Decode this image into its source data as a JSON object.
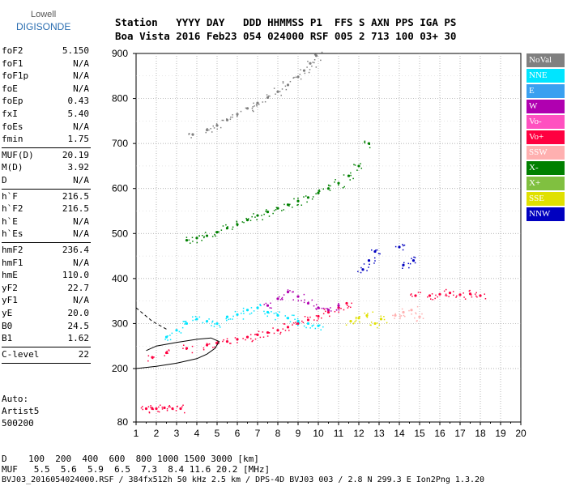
{
  "logo": {
    "line1": "Lowell",
    "line2": "DIGISONDE"
  },
  "header": {
    "row1": "Station   YYYY DAY   DDD HHMMSS P1  FFS S AXN PPS IGA PS",
    "row2": "Boa Vista 2016 Feb23 054 024000 RSF 005 2 713 100 03+ 30"
  },
  "params": [
    {
      "k": "foF2",
      "v": "5.150"
    },
    {
      "k": "foF1",
      "v": "N/A"
    },
    {
      "k": "foF1p",
      "v": "N/A"
    },
    {
      "k": "foE",
      "v": "N/A"
    },
    {
      "k": "foEp",
      "v": "0.43"
    },
    {
      "k": "fxI",
      "v": "5.40"
    },
    {
      "k": "foEs",
      "v": "N/A"
    },
    {
      "k": "fmin",
      "v": "1.75"
    },
    {
      "k": "MUF(D)",
      "v": "20.19"
    },
    {
      "k": "M(D)",
      "v": "3.92"
    },
    {
      "k": "D",
      "v": "N/A"
    },
    {
      "k": "h`F",
      "v": "216.5"
    },
    {
      "k": "h`F2",
      "v": "216.5"
    },
    {
      "k": "h`E",
      "v": "N/A"
    },
    {
      "k": "h`Es",
      "v": "N/A"
    },
    {
      "k": "hmF2",
      "v": "236.4"
    },
    {
      "k": "hmF1",
      "v": "N/A"
    },
    {
      "k": "hmE",
      "v": "110.0"
    },
    {
      "k": "yF2",
      "v": "22.7"
    },
    {
      "k": "yF1",
      "v": "N/A"
    },
    {
      "k": "yE",
      "v": "20.0"
    },
    {
      "k": "B0",
      "v": "24.5"
    },
    {
      "k": "B1",
      "v": "1.62"
    },
    {
      "k": "C-level",
      "v": "22"
    }
  ],
  "auto": {
    "line1": "Auto:",
    "line2": "Artist5",
    "line3": "500200"
  },
  "legend": [
    {
      "label": "NoVal",
      "color": "#808080"
    },
    {
      "label": "NNE",
      "color": "#00e5ff"
    },
    {
      "label": "E",
      "color": "#3aa0f0"
    },
    {
      "label": "W",
      "color": "#b000b0"
    },
    {
      "label": "Vo-",
      "color": "#ff50c0"
    },
    {
      "label": "Vo+",
      "color": "#ff0040"
    },
    {
      "label": "SSW",
      "color": "#ffb0b0"
    },
    {
      "label": "X-",
      "color": "#008000"
    },
    {
      "label": "X+",
      "color": "#80c040"
    },
    {
      "label": "SSE",
      "color": "#e0e000"
    },
    {
      "label": "NNW",
      "color": "#0000c0"
    }
  ],
  "footer": {
    "d_row": "D    100  200  400  600  800 1000 1500 3000 [km]",
    "muf_row": "MUF   5.5  5.6  5.9  6.5  7.3  8.4 11.6 20.2 [MHz]",
    "file_row": "BVJ03_2016054024000.RSF / 384fx512h 50 kHz 2.5 km / DPS-4D BVJ03 003 / 2.8 N 299.3 E Ion2Png 1.3.20"
  },
  "chart_data": {
    "type": "scatter",
    "xlim": [
      1,
      20
    ],
    "ylim": [
      80,
      900
    ],
    "x_ticks": [
      1,
      2,
      3,
      4,
      5,
      6,
      7,
      8,
      9,
      10,
      11,
      12,
      13,
      14,
      15,
      16,
      17,
      18,
      19,
      20
    ],
    "y_ticks": [
      80,
      200,
      300,
      400,
      500,
      600,
      700,
      800,
      900
    ],
    "grid": true,
    "traces": [
      {
        "name": "O-trace 1st hop",
        "color": "#ff0040",
        "x": [
          1.8,
          2.5,
          3.5,
          4.5,
          5.0,
          5.5,
          6.0,
          6.5,
          7.0,
          7.5,
          8.0,
          8.5,
          9.0,
          9.5,
          10.0,
          10.5,
          11.0,
          11.4
        ],
        "y": [
          225,
          235,
          245,
          252,
          256,
          260,
          265,
          270,
          275,
          280,
          285,
          292,
          300,
          308,
          316,
          325,
          335,
          345
        ]
      },
      {
        "name": "O-trace 2nd hop",
        "color": "#008000",
        "x": [
          3.5,
          4.0,
          4.5,
          5.0,
          5.5,
          6.0,
          6.5,
          7.0,
          7.5,
          8.0,
          8.5,
          9.0,
          9.5,
          10.0,
          10.5,
          11.0,
          11.5,
          12.0,
          12.5
        ],
        "y": [
          485,
          490,
          495,
          503,
          512,
          520,
          530,
          540,
          548,
          556,
          564,
          572,
          580,
          590,
          600,
          612,
          628,
          650,
          700
        ]
      },
      {
        "name": "O-trace 3rd hop",
        "color": "#808080",
        "x": [
          3.8,
          4.5,
          5.0,
          5.5,
          6.0,
          6.5,
          7.0,
          7.5,
          8.0,
          8.5,
          9.0,
          9.3,
          9.6,
          9.9
        ],
        "y": [
          720,
          730,
          740,
          752,
          765,
          778,
          790,
          802,
          815,
          830,
          848,
          862,
          878,
          895
        ]
      },
      {
        "name": "Es/spread",
        "color": "#00e5ff",
        "x": [
          2.5,
          3.0,
          3.5,
          4.0,
          4.5,
          5.0,
          5.5,
          6.0,
          6.5,
          7.0,
          7.5,
          8.0,
          8.5,
          9.0,
          9.5,
          10.0
        ],
        "y": [
          270,
          285,
          300,
          310,
          305,
          300,
          315,
          320,
          330,
          335,
          325,
          318,
          312,
          305,
          300,
          295
        ]
      },
      {
        "name": "F spread high",
        "color": "#b000b0",
        "x": [
          7.5,
          8.0,
          8.5,
          9.0,
          9.5,
          10.0,
          10.5,
          11.0
        ],
        "y": [
          340,
          355,
          370,
          360,
          345,
          335,
          330,
          340
        ]
      },
      {
        "name": "SSE cluster",
        "color": "#e0e000",
        "x": [
          11.6,
          12.0,
          12.4,
          12.8,
          13.1
        ],
        "y": [
          305,
          312,
          318,
          300,
          310
        ]
      },
      {
        "name": "SSW cluster",
        "color": "#ffb0b0",
        "x": [
          13.8,
          14.2,
          14.6,
          15.0
        ],
        "y": [
          318,
          325,
          330,
          315
        ]
      },
      {
        "name": "Vo+ tail",
        "color": "#ff0040",
        "x": [
          14.8,
          15.5,
          16.0,
          16.5,
          17.0,
          17.5,
          18.0
        ],
        "y": [
          362,
          362,
          365,
          368,
          364,
          366,
          362
        ]
      },
      {
        "name": "NNW points",
        "color": "#0000c0",
        "x": [
          12.2,
          12.5,
          12.8,
          14.0,
          14.2,
          14.7
        ],
        "y": [
          420,
          440,
          460,
          470,
          430,
          440
        ]
      },
      {
        "name": "low echoes",
        "color": "#ff0040",
        "x": [
          1.5,
          1.8,
          2.0,
          2.4,
          2.8,
          3.2
        ],
        "y": [
          110,
          110,
          110,
          112,
          110,
          110
        ]
      }
    ],
    "profile_line": {
      "x": [
        1.0,
        2.0,
        3.0,
        4.0,
        4.5,
        4.9,
        5.1,
        4.7,
        4.0,
        3.0,
        2.0,
        1.5
      ],
      "y": [
        200,
        205,
        212,
        222,
        232,
        245,
        260,
        268,
        265,
        258,
        250,
        240
      ]
    },
    "dashed_line": {
      "x": [
        1.0,
        1.4,
        1.8,
        2.2,
        2.6
      ],
      "y": [
        335,
        320,
        305,
        295,
        285
      ]
    }
  }
}
